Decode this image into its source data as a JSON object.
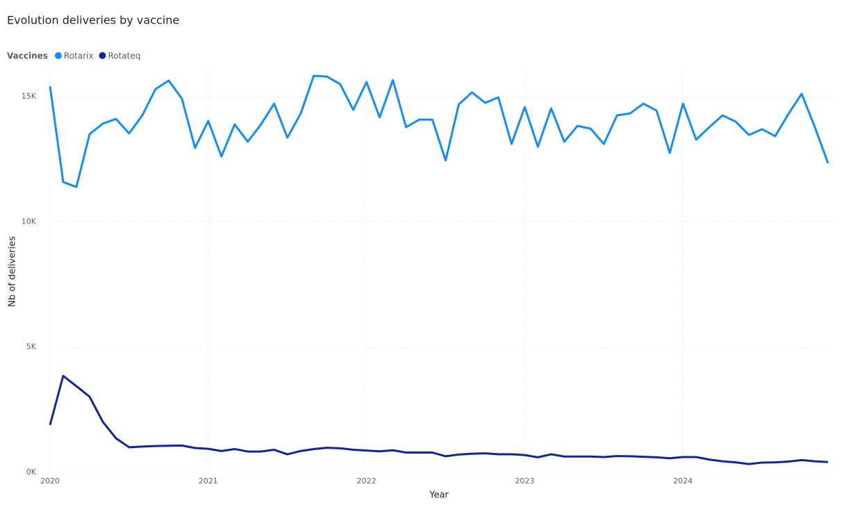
{
  "chart_data": {
    "type": "line",
    "title": "Evolution deliveries by vaccine",
    "legend_title": "Vaccines",
    "legend_position": "top-left",
    "x_label": "Year",
    "y_label": "Nb of deliveries",
    "grid": true,
    "x": [
      2020,
      2020.0833,
      2020.1667,
      2020.25,
      2020.3333,
      2020.4167,
      2020.5,
      2020.5833,
      2020.6667,
      2020.75,
      2020.8333,
      2020.9167,
      2021,
      2021.0833,
      2021.1667,
      2021.25,
      2021.3333,
      2021.4167,
      2021.5,
      2021.5833,
      2021.6667,
      2021.75,
      2021.8333,
      2021.9167,
      2022,
      2022.0833,
      2022.1667,
      2022.25,
      2022.3333,
      2022.4167,
      2022.5,
      2022.5833,
      2022.6667,
      2022.75,
      2022.8333,
      2022.9167,
      2023,
      2023.0833,
      2023.1667,
      2023.25,
      2023.3333,
      2023.4167,
      2023.5,
      2023.5833,
      2023.6667,
      2023.75,
      2023.8333,
      2023.9167,
      2024,
      2024.0833,
      2024.1667,
      2024.25,
      2024.3333,
      2024.4167,
      2024.5,
      2024.5833,
      2024.6667,
      2024.75,
      2024.8333,
      2024.9167
    ],
    "xlim": [
      2020,
      2024.9167
    ],
    "xticks": [
      2020,
      2021,
      2022,
      2023,
      2024
    ],
    "ylim": [
      0,
      16000
    ],
    "yticks": [
      {
        "value": 0,
        "label": "0K"
      },
      {
        "value": 5000,
        "label": "5K"
      },
      {
        "value": 10000,
        "label": "10K"
      },
      {
        "value": 15000,
        "label": "15K"
      }
    ],
    "series": [
      {
        "name": "Rotarix",
        "color": "#118DFF",
        "values": [
          15410,
          11590,
          11390,
          13500,
          13920,
          14110,
          13530,
          14250,
          15300,
          15640,
          14920,
          12950,
          14030,
          12610,
          13890,
          13200,
          13890,
          14720,
          13360,
          14310,
          15830,
          15800,
          15500,
          14470,
          15580,
          14170,
          15660,
          13780,
          14080,
          14080,
          12450,
          14690,
          15170,
          14750,
          14970,
          13110,
          14580,
          13000,
          14530,
          13200,
          13830,
          13720,
          13110,
          14250,
          14330,
          14720,
          14440,
          12750,
          14720,
          13280,
          13780,
          14250,
          14000,
          13470,
          13700,
          13420,
          14310,
          15110,
          13780,
          12340
        ]
      },
      {
        "name": "Rotateq",
        "color": "#12239E",
        "values": [
          1890,
          3850,
          3440,
          3020,
          2020,
          1360,
          1000,
          1030,
          1050,
          1060,
          1070,
          970,
          940,
          850,
          930,
          830,
          830,
          900,
          720,
          850,
          930,
          980,
          960,
          900,
          870,
          840,
          880,
          790,
          790,
          790,
          640,
          710,
          740,
          760,
          720,
          720,
          690,
          600,
          720,
          630,
          630,
          630,
          610,
          650,
          640,
          620,
          600,
          560,
          610,
          610,
          510,
          440,
          400,
          330,
          390,
          400,
          430,
          490,
          440,
          410
        ]
      }
    ]
  }
}
